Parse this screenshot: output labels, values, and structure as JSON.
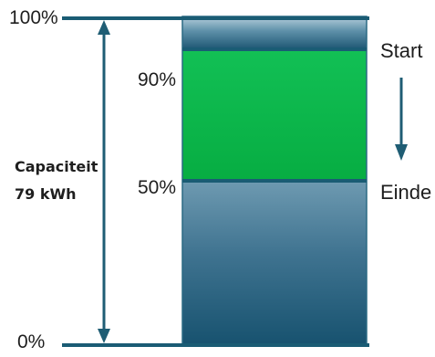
{
  "markers": {
    "top": "100%",
    "bottom": "0%",
    "start_level": "90%",
    "end_level": "50%"
  },
  "side_labels": {
    "start": "Start",
    "end": "Einde"
  },
  "capacity": {
    "label": "Capaciteit",
    "value": "79  kWh"
  },
  "levels": {
    "start_fraction": 0.9,
    "end_fraction": 0.5
  },
  "colors": {
    "frame_line": "#1a5c74",
    "charge_band": "#0ab64a",
    "battery_top": "#5c8fa7",
    "battery_body": "#1b5675",
    "arrow": "#1f5d74",
    "text": "#1e1e1e"
  }
}
